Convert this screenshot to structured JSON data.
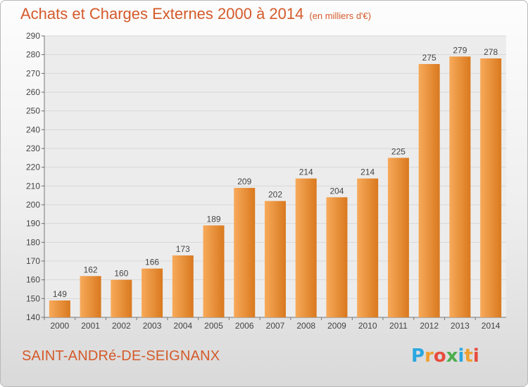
{
  "title": "Achats et Charges Externes 2000 à 2014",
  "subtitle": "(en milliers d'€)",
  "commune": "SAINT-ANDRé-DE-SEIGNANX",
  "brand": {
    "letters": [
      "P",
      "r",
      "o",
      "x",
      "i",
      "t",
      "i"
    ],
    "colors": [
      "#2aa7e1",
      "#f0a030",
      "#e84c3d",
      "#4cae4c",
      "#2aa7e1",
      "#f0a030",
      "#e84c3d"
    ]
  },
  "colors": {
    "bar_top": "#f7aa5a",
    "bar_bottom": "#d9791f",
    "title": "#d45a2a"
  },
  "chart_data": {
    "type": "bar",
    "title": "Achats et Charges Externes 2000 à 2014",
    "subtitle": "(en milliers d'€)",
    "categories": [
      "2000",
      "2001",
      "2002",
      "2003",
      "2004",
      "2005",
      "2006",
      "2007",
      "2008",
      "2009",
      "2010",
      "2011",
      "2012",
      "2013",
      "2014"
    ],
    "values": [
      149,
      162,
      160,
      166,
      173,
      189,
      209,
      202,
      214,
      204,
      214,
      225,
      275,
      279,
      278
    ],
    "ylim": [
      140,
      290
    ],
    "yticks": [
      140,
      150,
      160,
      170,
      180,
      190,
      200,
      210,
      220,
      230,
      240,
      250,
      260,
      270,
      280,
      290
    ],
    "grid": true,
    "xlabel": "",
    "ylabel": ""
  }
}
